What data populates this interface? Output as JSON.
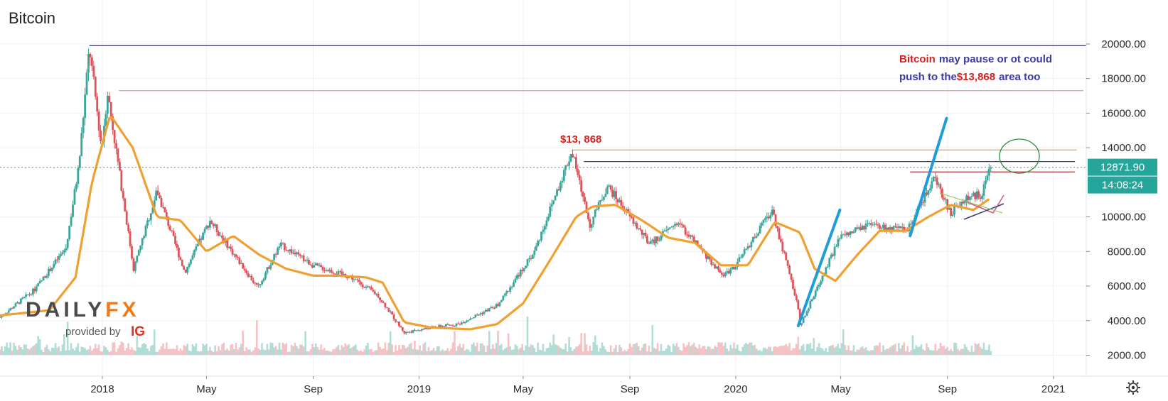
{
  "chart_data": {
    "type": "candlestick",
    "title": "Bitcoin",
    "price_axis": {
      "ticks": [
        "20000.00",
        "18000.00",
        "16000.00",
        "14000.00",
        "10000.00",
        "8000.00",
        "6000.00",
        "4000.00",
        "2000.00"
      ],
      "tick_values": [
        20000,
        18000,
        16000,
        14000,
        10000,
        8000,
        6000,
        4000,
        2000
      ],
      "range": [
        1200,
        20900
      ]
    },
    "time_axis": {
      "ticks": [
        "2018",
        "May",
        "Sep",
        "2019",
        "May",
        "Sep",
        "2020",
        "May",
        "Sep",
        "2021"
      ],
      "tick_dates": [
        "2018-01-01",
        "2018-05-01",
        "2018-09-01",
        "2019-01-01",
        "2019-05-01",
        "2019-09-01",
        "2020-01-01",
        "2020-05-01",
        "2020-09-01",
        "2021-01-01"
      ],
      "range": [
        "2017-09-05",
        "2021-02-08"
      ]
    },
    "current_price": {
      "label": "12871.90",
      "value": 12871.9
    },
    "countdown": {
      "label": "14:08:24"
    },
    "price_series": {
      "name": "Bitcoin",
      "dates": [
        "2017-09-05",
        "2017-10-15",
        "2017-11-20",
        "2017-12-05",
        "2017-12-17",
        "2017-12-31",
        "2018-01-07",
        "2018-02-06",
        "2018-03-05",
        "2018-04-06",
        "2018-05-05",
        "2018-06-29",
        "2018-07-25",
        "2018-09-01",
        "2018-10-15",
        "2018-11-14",
        "2018-12-15",
        "2019-01-15",
        "2019-02-15",
        "2019-04-02",
        "2019-05-14",
        "2019-06-26",
        "2019-07-17",
        "2019-08-06",
        "2019-09-24",
        "2019-10-26",
        "2019-12-17",
        "2020-01-01",
        "2020-02-12",
        "2020-03-12",
        "2020-03-15",
        "2020-04-30",
        "2020-06-01",
        "2020-07-15",
        "2020-08-17",
        "2020-09-05",
        "2020-09-20",
        "2020-10-10",
        "2020-10-21"
      ],
      "values": [
        4200,
        5800,
        8200,
        13000,
        19800,
        14000,
        17200,
        7000,
        11500,
        6800,
        9800,
        5900,
        8400,
        7200,
        6500,
        5500,
        3300,
        3600,
        3800,
        4900,
        8000,
        13800,
        9500,
        11800,
        8400,
        9700,
        6600,
        7200,
        10400,
        5000,
        3700,
        8800,
        9500,
        9200,
        12200,
        10200,
        11000,
        11300,
        12871.9
      ]
    },
    "moving_average": {
      "dates": [
        "2017-09-05",
        "2017-11-01",
        "2017-12-01",
        "2017-12-20",
        "2018-01-10",
        "2018-02-05",
        "2018-03-05",
        "2018-04-01",
        "2018-05-01",
        "2018-06-01",
        "2018-07-01",
        "2018-08-01",
        "2018-09-01",
        "2018-10-01",
        "2018-11-01",
        "2018-11-20",
        "2018-12-15",
        "2019-01-15",
        "2019-03-01",
        "2019-04-01",
        "2019-05-01",
        "2019-06-01",
        "2019-07-01",
        "2019-07-20",
        "2019-08-15",
        "2019-09-15",
        "2019-10-15",
        "2019-11-15",
        "2019-12-15",
        "2020-01-15",
        "2020-02-15",
        "2020-03-15",
        "2020-04-01",
        "2020-04-25",
        "2020-05-20",
        "2020-06-15",
        "2020-07-15",
        "2020-08-10",
        "2020-09-05",
        "2020-10-01",
        "2020-10-21"
      ],
      "values": [
        4300,
        4600,
        6500,
        12000,
        15900,
        14000,
        10000,
        9800,
        8000,
        8900,
        7800,
        7000,
        6600,
        6600,
        6500,
        6200,
        3900,
        3600,
        3500,
        3800,
        5000,
        7500,
        10000,
        10600,
        10700,
        9800,
        8800,
        8500,
        7200,
        7200,
        9700,
        9100,
        7000,
        6300,
        7800,
        9200,
        9200,
        10000,
        10700,
        10400,
        11100
      ]
    },
    "horizontal_levels": [
      {
        "value": 19900,
        "color": "#3a3a7a"
      },
      {
        "value": 17300,
        "color": "#e79a9a"
      },
      {
        "value": 13868,
        "color": "#f0a030"
      },
      {
        "value": 13200,
        "color": "#3a3a7a"
      },
      {
        "value": 12600,
        "color": "#b03030"
      }
    ],
    "annotations": {
      "level_label": "$13, 868",
      "note_line1_red": "Bitcoin",
      "note_line1_blue": "may pause or ot could",
      "note_line2_blue_a": "push to the",
      "note_line2_red": "$13,868",
      "note_line2_blue_b": "area too"
    },
    "trend_lines": [
      {
        "from": [
          "2020-03-13",
          3700
        ],
        "to": [
          "2020-04-30",
          10400
        ],
        "color": "#1f9ddb"
      },
      {
        "from": [
          "2020-07-20",
          8900
        ],
        "to": [
          "2020-08-31",
          15700
        ],
        "color": "#1f9ddb"
      }
    ],
    "grid": true,
    "colors": {
      "up": "#3aa59a",
      "down": "#e0525a",
      "ma": "#f0a030",
      "accent": "#1f9ddb",
      "badge": "#26a69a"
    }
  },
  "logo": {
    "main_dark": "DAILY",
    "main_orange": "FX",
    "sub_text": "provided by",
    "sub_brand": "IG"
  },
  "toolbar": {
    "settings_icon": "gear-icon"
  }
}
